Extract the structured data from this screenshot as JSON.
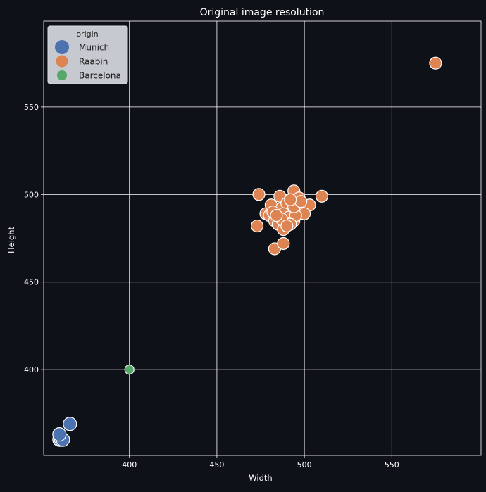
{
  "chart_data": {
    "type": "scatter",
    "title": "Original image resolution",
    "xlabel": "Width",
    "ylabel": "Height",
    "xlim": [
      351,
      601
    ],
    "ylim": [
      351,
      599
    ],
    "xticks": [
      400,
      450,
      500,
      550
    ],
    "yticks": [
      400,
      450,
      500,
      550
    ],
    "grid": true,
    "legend": {
      "title": "origin",
      "placement": "top-left"
    },
    "series": [
      {
        "name": "Munich",
        "color": "#4c72b0",
        "marker_size": "large",
        "points": [
          [
            360,
            360
          ],
          [
            361,
            360
          ],
          [
            362,
            360
          ],
          [
            360,
            363
          ],
          [
            366,
            369
          ]
        ]
      },
      {
        "name": "Raabin",
        "color": "#dd8452",
        "marker_size": "medium",
        "points": [
          [
            575,
            575
          ],
          [
            474,
            500
          ],
          [
            486,
            499
          ],
          [
            494,
            502
          ],
          [
            497,
            498
          ],
          [
            510,
            499
          ],
          [
            478,
            489
          ],
          [
            481,
            494
          ],
          [
            487,
            492
          ],
          [
            490,
            495
          ],
          [
            493,
            490
          ],
          [
            496,
            493
          ],
          [
            499,
            494
          ],
          [
            503,
            494
          ],
          [
            500,
            489
          ],
          [
            480,
            488
          ],
          [
            483,
            485
          ],
          [
            485,
            487
          ],
          [
            488,
            489
          ],
          [
            491,
            487
          ],
          [
            494,
            485
          ],
          [
            495,
            488
          ],
          [
            485,
            483
          ],
          [
            489,
            484
          ],
          [
            492,
            483
          ],
          [
            488,
            480
          ],
          [
            487,
            486
          ],
          [
            482,
            490
          ],
          [
            484,
            488
          ],
          [
            490,
            482
          ],
          [
            473,
            482
          ],
          [
            483,
            469
          ],
          [
            488,
            472
          ],
          [
            494,
            493
          ],
          [
            498,
            496
          ],
          [
            492,
            497
          ]
        ]
      },
      {
        "name": "Barcelona",
        "color": "#55a868",
        "marker_size": "small",
        "points": [
          [
            400,
            400
          ]
        ]
      }
    ]
  }
}
